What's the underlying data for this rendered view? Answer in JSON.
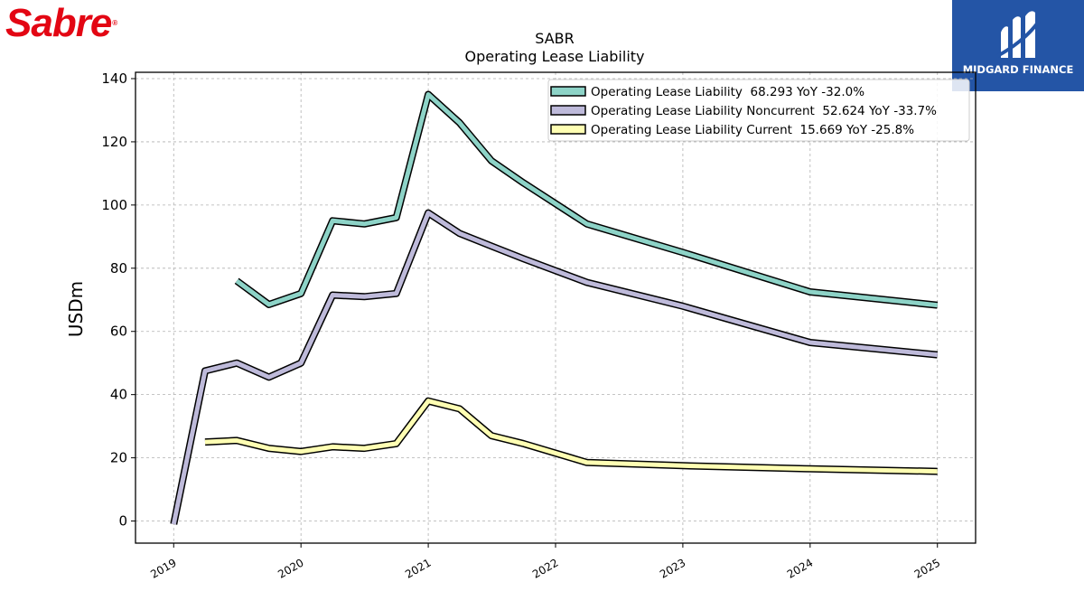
{
  "brand": {
    "logo_text": "Sabre",
    "logo_reg": "®",
    "badge_text": "MIDGARD FINANCE"
  },
  "colors": {
    "logo": "#e30613",
    "badge": "#2455a6",
    "series": [
      "#8dd3c7",
      "#bebada",
      "#ffffb3"
    ]
  },
  "chart_data": {
    "type": "line",
    "title": "SABR",
    "subtitle": "Operating Lease Liability",
    "ylabel": "USDm",
    "xlabel": "",
    "xlim": [
      2018.7,
      2025.3
    ],
    "ylim": [
      -7,
      142
    ],
    "xticks": [
      2019,
      2020,
      2021,
      2022,
      2023,
      2024,
      2025
    ],
    "xtick_labels": [
      "2019",
      "2020",
      "2021",
      "2022",
      "2023",
      "2024",
      "2025"
    ],
    "yticks": [
      0,
      20,
      40,
      60,
      80,
      100,
      120,
      140
    ],
    "ytick_labels": [
      "0",
      "20",
      "40",
      "60",
      "80",
      "100",
      "120",
      "140"
    ],
    "grid": true,
    "legend_position": "top-right",
    "series": [
      {
        "name": "Operating Lease Liability  68.293 YoY -32.0%",
        "x": [
          "2019-07-01",
          "2019-10-01",
          "2020-01-01",
          "2020-04-01",
          "2020-07-01",
          "2020-10-01",
          "2021-01-01",
          "2021-04-01",
          "2021-07-01",
          "2021-10-01",
          "2022-04-01",
          "2023-01-01",
          "2024-01-01",
          "2025-01-01"
        ],
        "y": [
          76,
          68.5,
          72,
          95,
          94,
          96,
          135,
          126,
          114,
          107,
          94,
          85,
          72.5,
          68.3
        ]
      },
      {
        "name": "Operating Lease Liability Noncurrent  52.624 YoY -33.7%",
        "x": [
          "2019-01-01",
          "2019-04-01",
          "2019-07-01",
          "2019-10-01",
          "2020-01-01",
          "2020-04-01",
          "2020-07-01",
          "2020-10-01",
          "2021-01-01",
          "2021-04-01",
          "2021-07-01",
          "2021-10-01",
          "2022-04-01",
          "2023-01-01",
          "2024-01-01",
          "2025-01-01"
        ],
        "y": [
          -1,
          47.5,
          50,
          45.5,
          50,
          71.5,
          71,
          72,
          97.5,
          91,
          87,
          83,
          75.5,
          68,
          56.5,
          52.6
        ]
      },
      {
        "name": "Operating Lease Liability Current  15.669 YoY -25.8%",
        "x": [
          "2019-04-01",
          "2019-07-01",
          "2019-10-01",
          "2020-01-01",
          "2020-04-01",
          "2020-07-01",
          "2020-10-01",
          "2021-01-01",
          "2021-04-01",
          "2021-07-01",
          "2021-10-01",
          "2022-04-01",
          "2023-01-01",
          "2024-01-01",
          "2025-01-01"
        ],
        "y": [
          25,
          25.5,
          23,
          22,
          23.5,
          23,
          24.5,
          38,
          35.5,
          27,
          24.5,
          18.5,
          17.5,
          16.5,
          15.7
        ]
      }
    ]
  }
}
